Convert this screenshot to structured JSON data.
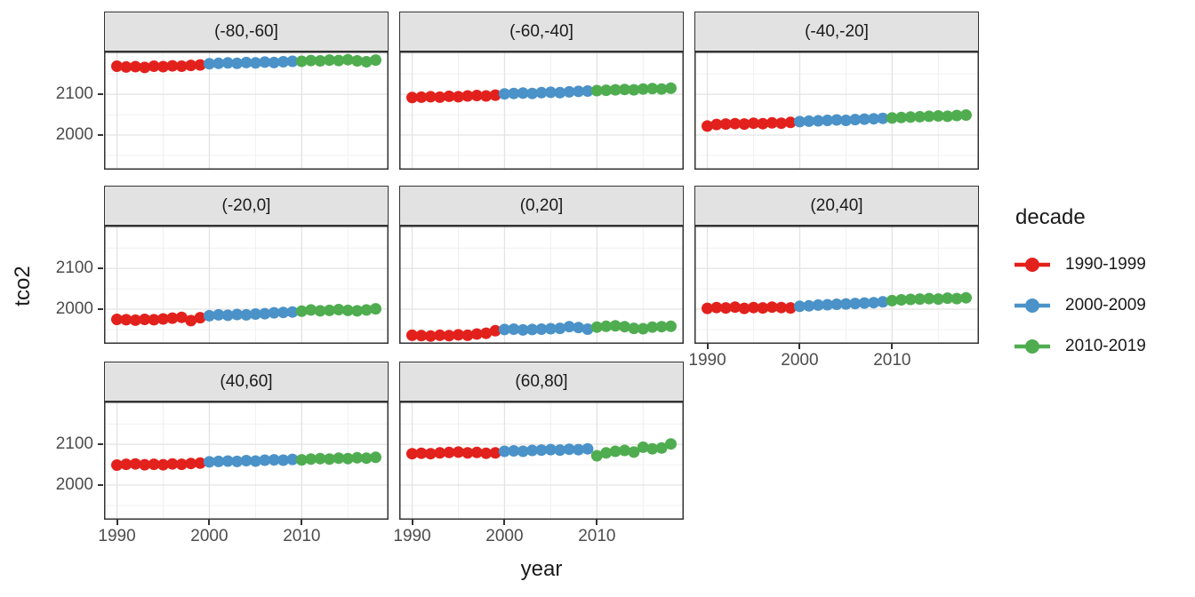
{
  "chart_data": {
    "type": "scatter",
    "connected": true,
    "title": "",
    "xlabel": "year",
    "ylabel": "tco2",
    "facet_labels": [
      "(-80,-60]",
      "(-60,-40]",
      "(-40,-20]",
      "(-20,0]",
      "(0,20]",
      "(20,40]",
      "(40,60]",
      "(60,80]"
    ],
    "xlim": [
      1988.6,
      2019.4
    ],
    "ylim": [
      1915,
      2205
    ],
    "grid": true,
    "legend_position": "right",
    "x_axis": {
      "ticks": [
        {
          "value": 1990,
          "label": "1990"
        },
        {
          "value": 2000,
          "label": "2000"
        },
        {
          "value": 2010,
          "label": "2010"
        }
      ],
      "minor": [
        1995,
        2005,
        2015
      ]
    },
    "y_axis": {
      "ticks": [
        {
          "value": 2000,
          "label": "2000"
        },
        {
          "value": 2100,
          "label": "2100"
        }
      ],
      "minor": [
        1950,
        2050,
        2150
      ]
    },
    "years": [
      1990,
      1991,
      1992,
      1993,
      1994,
      1995,
      1996,
      1997,
      1998,
      1999,
      2000,
      2001,
      2002,
      2003,
      2004,
      2005,
      2006,
      2007,
      2008,
      2009,
      2010,
      2011,
      2012,
      2013,
      2014,
      2015,
      2016,
      2017,
      2018
    ],
    "decades": [
      {
        "label": "1990-1999",
        "color": "#E3211C",
        "start": 1990,
        "end": 1999
      },
      {
        "label": "2000-2009",
        "color": "#4A92C8",
        "start": 2000,
        "end": 2009
      },
      {
        "label": "2010-2019",
        "color": "#4FAD50",
        "start": 2010,
        "end": 2019
      }
    ],
    "legend": {
      "title": "decade"
    },
    "facets": [
      {
        "label": "(-80,-60]",
        "values": [
          2169,
          2167,
          2168,
          2166,
          2169,
          2168,
          2170,
          2169,
          2171,
          2172,
          2175,
          2176,
          2177,
          2176,
          2178,
          2177,
          2179,
          2178,
          2180,
          2181,
          2181,
          2183,
          2182,
          2184,
          2183,
          2185,
          2182,
          2180,
          2184
        ]
      },
      {
        "label": "(-60,-40]",
        "values": [
          2092,
          2093,
          2094,
          2093,
          2095,
          2094,
          2096,
          2097,
          2096,
          2098,
          2101,
          2102,
          2103,
          2102,
          2104,
          2105,
          2104,
          2106,
          2107,
          2108,
          2109,
          2110,
          2111,
          2112,
          2111,
          2113,
          2114,
          2113,
          2115
        ]
      },
      {
        "label": "(-40,-20]",
        "values": [
          2022,
          2026,
          2027,
          2028,
          2027,
          2029,
          2028,
          2030,
          2029,
          2031,
          2033,
          2034,
          2035,
          2036,
          2037,
          2036,
          2038,
          2039,
          2040,
          2041,
          2042,
          2043,
          2044,
          2045,
          2046,
          2047,
          2046,
          2048,
          2049
        ]
      },
      {
        "label": "(-20,0]",
        "values": [
          1975,
          1974,
          1973,
          1975,
          1974,
          1976,
          1978,
          1980,
          1972,
          1979,
          1984,
          1986,
          1985,
          1987,
          1986,
          1988,
          1989,
          1991,
          1992,
          1993,
          1995,
          1998,
          1996,
          1997,
          1999,
          1997,
          1996,
          1998,
          2001
        ]
      },
      {
        "label": "(0,20]",
        "values": [
          1936,
          1935,
          1934,
          1936,
          1935,
          1937,
          1936,
          1939,
          1941,
          1947,
          1950,
          1951,
          1949,
          1950,
          1951,
          1952,
          1953,
          1957,
          1955,
          1951,
          1956,
          1958,
          1959,
          1957,
          1953,
          1952,
          1956,
          1957,
          1958
        ]
      },
      {
        "label": "(20,40]",
        "values": [
          2002,
          2004,
          2003,
          2005,
          2002,
          2004,
          2003,
          2005,
          2004,
          2003,
          2007,
          2008,
          2010,
          2011,
          2012,
          2013,
          2014,
          2015,
          2016,
          2018,
          2021,
          2023,
          2024,
          2025,
          2026,
          2025,
          2027,
          2026,
          2028
        ]
      },
      {
        "label": "(40,60]",
        "values": [
          2049,
          2051,
          2052,
          2050,
          2051,
          2050,
          2052,
          2051,
          2053,
          2054,
          2057,
          2058,
          2059,
          2058,
          2060,
          2059,
          2061,
          2062,
          2061,
          2063,
          2062,
          2064,
          2065,
          2064,
          2066,
          2065,
          2067,
          2066,
          2068
        ]
      },
      {
        "label": "(60,80]",
        "values": [
          2077,
          2078,
          2077,
          2079,
          2080,
          2081,
          2079,
          2080,
          2078,
          2079,
          2083,
          2084,
          2083,
          2085,
          2086,
          2087,
          2086,
          2088,
          2087,
          2089,
          2072,
          2079,
          2083,
          2085,
          2081,
          2093,
          2089,
          2091,
          2101
        ]
      }
    ],
    "colors": {
      "strip_background": "#E2E2E2",
      "panel_border": "#333333",
      "grid_major": "#E3E3E3",
      "grid_minor": "#F0F0F0",
      "tick_text": "#4D4D4D"
    }
  }
}
